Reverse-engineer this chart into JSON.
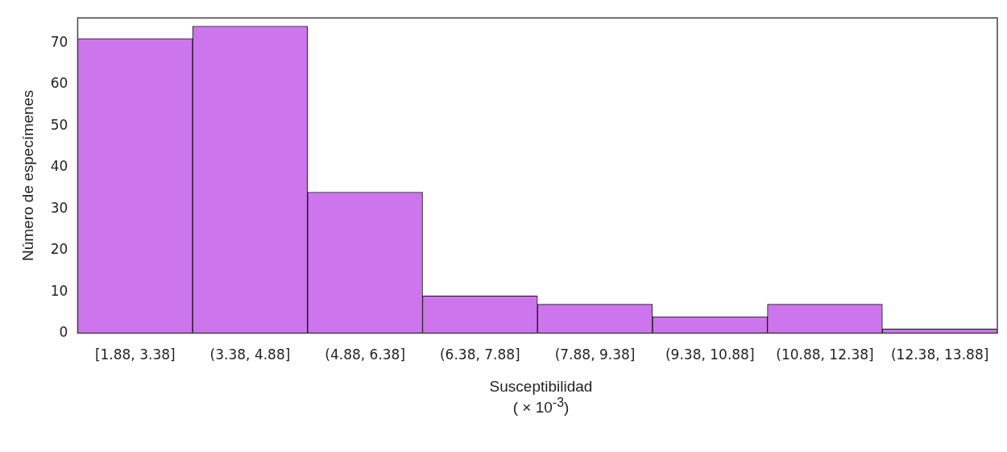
{
  "chart_data": {
    "type": "bar",
    "xlabel": "Susceptibilidad\n( × 10$^{-3}$)",
    "ylabel": "Número de especímenes",
    "categories": [
      "[1.88, 3.38]",
      "(3.38, 4.88]",
      "(4.88, 6.38]",
      "(6.38, 7.88]",
      "(7.88, 9.38]",
      "(9.38, 10.88]",
      "(10.88, 12.38]",
      "(12.38, 13.88]"
    ],
    "values": [
      71,
      74,
      34,
      9,
      7,
      4,
      7,
      1
    ],
    "color": "#cd75ec",
    "ylim": [
      0,
      76
    ],
    "yticks": [
      0,
      10,
      20,
      30,
      40,
      50,
      60,
      70
    ],
    "grid": false,
    "legend": false
  }
}
